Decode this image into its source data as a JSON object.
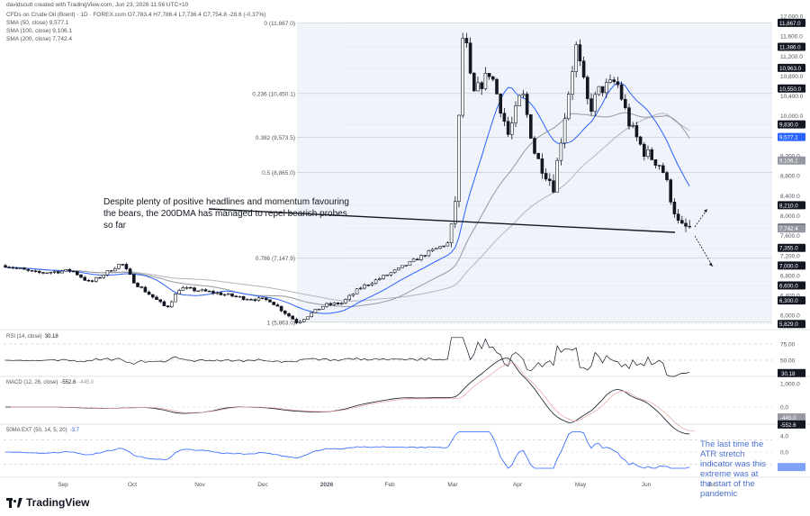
{
  "header": {
    "author_line": "davidscutt created with TradingView.com, Jun 23, 2026 11:56 UTC+10",
    "symbol_line": "CFDs on Crude Oil (Brent) · 1D · FOREX.com  O7,783.4  H7,786.4  L7,736.4  C7,754.8  -28.6 (-0.37%)",
    "sma50": "SMA (50, close)  9,577.1",
    "sma100": "SMA (100, close)  9,106.1",
    "sma200": "SMA (200, close)  7,742.4"
  },
  "annotations": {
    "main": "Despite plenty of positive headlines and momentum favouring the bears, the 200DMA has managed to repel bearish probes so far",
    "atr": "The last time the ATR stretch indicator was this extreme was at the start of the pandemic"
  },
  "indicators": {
    "rsi": {
      "label": "RSI (14, close)",
      "value": "30.18"
    },
    "macd": {
      "label": "MACD (12, 26, close)",
      "value": "-552.6",
      "value2": "-445.0"
    },
    "atr": {
      "label": "50MA EXT (50, 14, 5, 20)",
      "value": "-3.7"
    }
  },
  "branding": {
    "logo": "TradingView"
  },
  "chart_data": {
    "type": "candlestick",
    "symbol": "CFDs on Crude Oil (Brent)",
    "x_ticks": [
      "Sep",
      "Oct",
      "Nov",
      "Dec",
      "2026",
      "Feb",
      "Mar",
      "Apr",
      "May",
      "Jun",
      "Jul"
    ],
    "y_ticks": [
      "6,000.0",
      "6,400.0",
      "6,800.0",
      "7,200.0",
      "7,600.0",
      "8,000.0",
      "8,400.0",
      "8,800.0",
      "9,200.0",
      "10,000.0",
      "10,400.0",
      "10,800.0",
      "11,200.0",
      "11,600.0",
      "12,000.0"
    ],
    "ylim": [
      5800,
      12000
    ],
    "axis_badges": [
      {
        "label": "11,867.0",
        "value": 11867,
        "style": "dark"
      },
      {
        "label": "11,386.0",
        "value": 11386,
        "style": "dark"
      },
      {
        "label": "10,963.0",
        "value": 10963,
        "style": "dark"
      },
      {
        "label": "10,550.0",
        "value": 10550,
        "style": "dark"
      },
      {
        "label": "9,830.0",
        "value": 9830,
        "style": "dark"
      },
      {
        "label": "9,577.1",
        "value": 9577.1,
        "style": "blue"
      },
      {
        "label": "9,106.1",
        "value": 9106.1,
        "style": "grey"
      },
      {
        "label": "8,210.0",
        "value": 8210,
        "style": "dark"
      },
      {
        "label": "7,754.8",
        "value": 7754.8,
        "style": "dark"
      },
      {
        "label": "7,742.4",
        "value": 7742.4,
        "style": "grey"
      },
      {
        "label": "7,355.0",
        "value": 7355,
        "style": "dark"
      },
      {
        "label": "7,000.0",
        "value": 7000,
        "style": "dark"
      },
      {
        "label": "6,600.0",
        "value": 6600,
        "style": "dark"
      },
      {
        "label": "6,300.0",
        "value": 6300,
        "style": "dark"
      },
      {
        "label": "5,829.0",
        "value": 5829,
        "style": "dark"
      }
    ],
    "fib_levels": [
      {
        "label": "0 (11,867.0)",
        "value": 11867
      },
      {
        "label": "0.236 (10,450.1)",
        "value": 10450.1
      },
      {
        "label": "0.382 (9,573.5)",
        "value": 9573.5
      },
      {
        "label": "0.5 (8,865.0)",
        "value": 8865
      },
      {
        "label": "0.786 (7,147.9)",
        "value": 7147.9
      },
      {
        "label": "1 (5,863.0)",
        "value": 5863
      }
    ],
    "series": [
      {
        "name": "SMA (50, close)",
        "color": "#2962ff"
      },
      {
        "name": "SMA (100, close)",
        "color": "#9598a1"
      },
      {
        "name": "SMA (200, close)",
        "color": "#b2b5be"
      }
    ],
    "rsi": {
      "levels": [
        "75.00",
        "50.00"
      ],
      "current": "30.18"
    },
    "macd": {
      "ticks": [
        "1,000.0",
        "0.0"
      ],
      "badges": [
        "-445.0",
        "-552.6"
      ]
    },
    "atr_ext": {
      "ticks": [
        "4.0",
        "0.0"
      ]
    },
    "colors": {
      "up": "#ffffff",
      "down": "#131722",
      "sma50": "#2962ff",
      "sma100": "#9598a1",
      "sma200": "#b2b5be",
      "fib_band": "#f0f3fa",
      "annotation_blue": "#4a6fd0"
    }
  }
}
